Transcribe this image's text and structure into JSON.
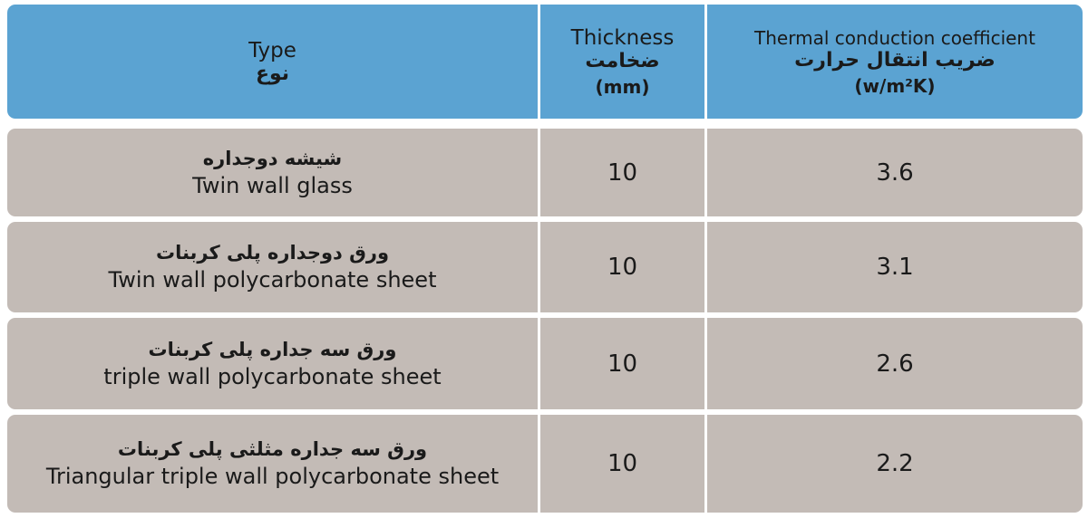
{
  "header": {
    "type_en": "Type",
    "type_fa": "نوع",
    "thickness_en": "Thickness",
    "thickness_fa": "ضخامت",
    "thickness_unit": "(mm)",
    "coef_en": "Thermal conduction coefficient",
    "coef_fa": "ضریب انتقال حرارت",
    "coef_unit": "(w/m²K)"
  },
  "rows": [
    {
      "type_fa": "شیشه دوجداره",
      "type_en": "Twin wall glass",
      "thickness": "10",
      "coef": "3.6"
    },
    {
      "type_fa": "ورق دوجداره پلی کربنات",
      "type_en": "Twin wall polycarbonate sheet",
      "thickness": "10",
      "coef": "3.1"
    },
    {
      "type_fa": "ورق سه جداره پلی کربنات",
      "type_en": "triple wall polycarbonate sheet",
      "thickness": "10",
      "coef": "2.6"
    },
    {
      "type_fa": "ورق سه جداره مثلثی پلی کربنات",
      "type_en": "Triangular triple wall polycarbonate sheet",
      "thickness": "10",
      "coef": "2.2"
    }
  ],
  "colors": {
    "header": "#5ba3d2",
    "row": "#c3bbb6"
  }
}
